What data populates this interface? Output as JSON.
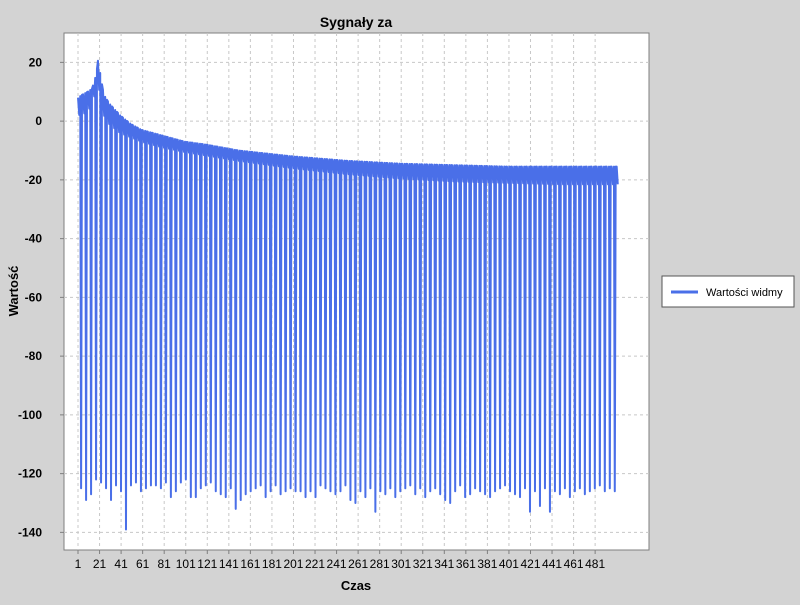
{
  "chart_data": {
    "type": "line",
    "title": "Sygnały za",
    "xlabel": "Czas",
    "ylabel": "Wartość",
    "xlim": [
      -12,
      531
    ],
    "ylim": [
      -146,
      30
    ],
    "x_ticks": [
      1,
      21,
      41,
      61,
      81,
      101,
      121,
      141,
      161,
      181,
      201,
      221,
      241,
      261,
      281,
      301,
      321,
      341,
      361,
      381,
      401,
      421,
      441,
      461,
      481
    ],
    "y_ticks": [
      20,
      0,
      -20,
      -40,
      -60,
      -80,
      -100,
      -120,
      -140
    ],
    "grid": true,
    "legend_position": "right",
    "series": [
      {
        "name": "Wartości widmy",
        "color": "#4a6fe8",
        "pattern": "dense oscillation: each cycle peaks near the upper envelope, dips to the mid envelope, then to a deep trough near -125; ~108 cycles from x=1 to x=501",
        "upper_envelope": {
          "x": [
            1,
            5,
            10,
            14,
            18,
            20,
            22,
            25,
            30,
            40,
            50,
            60,
            80,
            100,
            120,
            150,
            200,
            250,
            300,
            350,
            400,
            450,
            500
          ],
          "y": [
            8,
            9,
            10,
            11,
            16,
            22,
            15,
            9,
            6,
            2,
            -1,
            -3,
            -5,
            -7,
            -8,
            -10,
            -12,
            -13.5,
            -14.5,
            -15,
            -15.5,
            -15.5,
            -15.5
          ]
        },
        "mid_envelope": {
          "x": [
            1,
            10,
            20,
            25,
            30,
            40,
            60,
            80,
            100,
            150,
            200,
            250,
            300,
            350,
            400,
            450,
            500
          ],
          "y": [
            2,
            3,
            12,
            2,
            -1,
            -4,
            -7,
            -9,
            -10.5,
            -13.5,
            -16,
            -18,
            -19.5,
            -20.5,
            -21,
            -21.5,
            -21.5
          ]
        },
        "trough_values": [
          -125,
          -129,
          -127,
          -122,
          -123,
          -125,
          -129,
          -124,
          -126,
          -139,
          -124,
          -123,
          -126,
          -125,
          -124,
          -124,
          -125,
          -123,
          -128,
          -126,
          -123,
          -122,
          -128,
          -128,
          -125,
          -124,
          -123,
          -126,
          -127,
          -128,
          -125,
          -132,
          -129,
          -127,
          -126,
          -125,
          -124,
          -128,
          -126,
          -124,
          -127,
          -126,
          -125,
          -126,
          -126,
          -128,
          -126,
          -128,
          -124,
          -125,
          -126,
          -127,
          -126,
          -124,
          -129,
          -130,
          -126,
          -128,
          -125,
          -133,
          -126,
          -127,
          -125,
          -128,
          -126,
          -125,
          -124,
          -127,
          -125,
          -128,
          -126,
          -125,
          -127,
          -129,
          -130,
          -126,
          -124,
          -128,
          -127,
          -125,
          -126,
          -127,
          -128,
          -126,
          -125,
          -124,
          -126,
          -127,
          -128,
          -125,
          -133,
          -126,
          -131,
          -125,
          -133,
          -126,
          -127,
          -125,
          -128,
          -126,
          -125,
          -127,
          -126,
          -125,
          -124,
          -126,
          -125,
          -126
        ]
      }
    ]
  }
}
